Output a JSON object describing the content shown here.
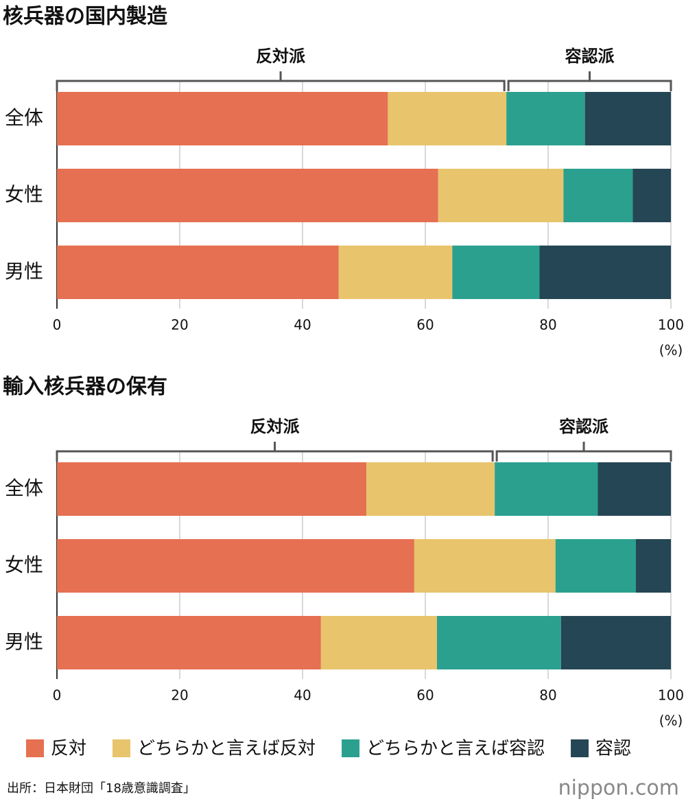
{
  "chart_data": [
    {
      "type": "bar",
      "title": "核兵器の国内製造",
      "groups": [
        "反対派",
        "容認派"
      ],
      "categories": [
        "全体",
        "女性",
        "男性"
      ],
      "series": [
        {
          "name": "反対",
          "color": "#e57052",
          "values": [
            53.9,
            62.1,
            45.9
          ]
        },
        {
          "name": "どちらかと言えば反対",
          "color": "#e8c46c",
          "values": [
            19.3,
            20.4,
            18.5
          ]
        },
        {
          "name": "どちらかと言えば容認",
          "color": "#2ba08f",
          "values": [
            12.8,
            11.3,
            14.2
          ]
        },
        {
          "name": "容認",
          "color": "#254654",
          "values": [
            14.0,
            6.2,
            21.4
          ]
        }
      ],
      "xlim": [
        0,
        100
      ],
      "xticks": [
        0,
        20,
        40,
        60,
        80,
        100
      ],
      "x_unit": "(%)",
      "grid": true
    },
    {
      "type": "bar",
      "title": "輸入核兵器の保有",
      "groups": [
        "反対派",
        "容認派"
      ],
      "categories": [
        "全体",
        "女性",
        "男性"
      ],
      "series": [
        {
          "color": "#e57052",
          "values": [
            50.4,
            58.2,
            43.0
          ]
        },
        {
          "color": "#e8c46c",
          "values": [
            20.9,
            23.0,
            18.9
          ]
        },
        {
          "color": "#2ba08f",
          "values": [
            16.8,
            13.1,
            20.2
          ]
        },
        {
          "color": "#254654",
          "values": [
            11.9,
            5.7,
            17.9
          ]
        }
      ],
      "xlim": [
        0,
        100
      ],
      "xticks": [
        0,
        20,
        40,
        60,
        80,
        100
      ],
      "x_unit": "(%)",
      "grid": true
    }
  ],
  "source": "出所：日本財団「18歳意識調査」",
  "logo": "nippon.com"
}
